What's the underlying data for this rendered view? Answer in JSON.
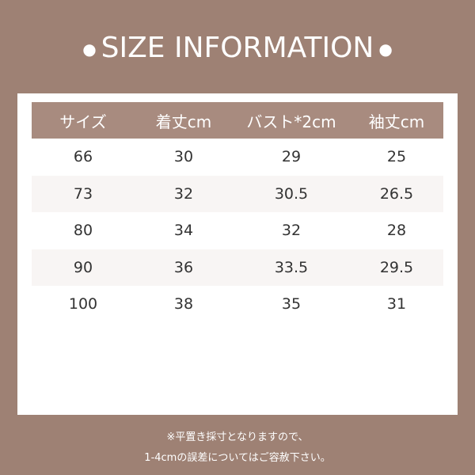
{
  "title": "SIZE INFORMATION",
  "colors": {
    "background": "#9e8174",
    "header": "#a88b7f",
    "panel": "#ffffff",
    "stripe": "#f8f5f4"
  },
  "table": {
    "headers": [
      "サイズ",
      "着丈cm",
      "バスト*2cm",
      "袖丈cm"
    ],
    "rows": [
      [
        "66",
        "30",
        "29",
        "25"
      ],
      [
        "73",
        "32",
        "30.5",
        "26.5"
      ],
      [
        "80",
        "34",
        "32",
        "28"
      ],
      [
        "90",
        "36",
        "33.5",
        "29.5"
      ],
      [
        "100",
        "38",
        "35",
        "31"
      ]
    ]
  },
  "notes": [
    "※平置き採寸となりますので、",
    "1-4cmの誤差についてはご容赦下さい。"
  ]
}
